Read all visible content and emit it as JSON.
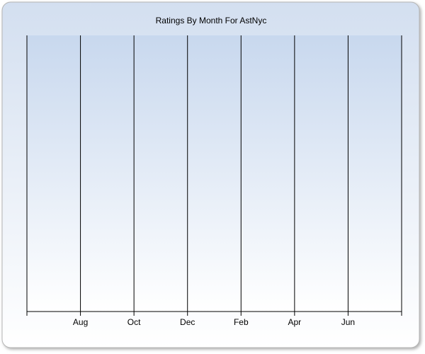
{
  "chart_data": {
    "type": "line",
    "title": "Ratings By Month For AstNyc",
    "categories": [
      "Aug",
      "Oct",
      "Dec",
      "Feb",
      "Apr",
      "Jun"
    ],
    "grid": true
  }
}
